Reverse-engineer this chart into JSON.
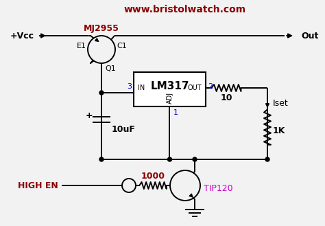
{
  "bg_color": "#f2f2f2",
  "line_color": "#000000",
  "dark_red": "#8B0000",
  "blue": "#0000CD",
  "magenta": "#cc00cc",
  "figsize": [
    4.74,
    3.29
  ],
  "dpi": 100,
  "website": "www.bristolwatch.com",
  "vcc_label": "+Vcc",
  "out_label": "Out",
  "q1_label": "Q1",
  "mj_label": "MJ2955",
  "e1_label": "E1",
  "c1_label": "C1",
  "lm_label": "LM317",
  "in_label": "IN",
  "out2_label": "OUT",
  "adj_label": "ADJ",
  "pin3": "3",
  "pin2": "2",
  "pin1": "1",
  "r10_label": "10",
  "iset_label": "Iset",
  "r1k_label": "1K",
  "cap_label": "10uF",
  "r1000_label": "1000",
  "tip_label": "TIP120",
  "high_en_label": "HIGH EN"
}
